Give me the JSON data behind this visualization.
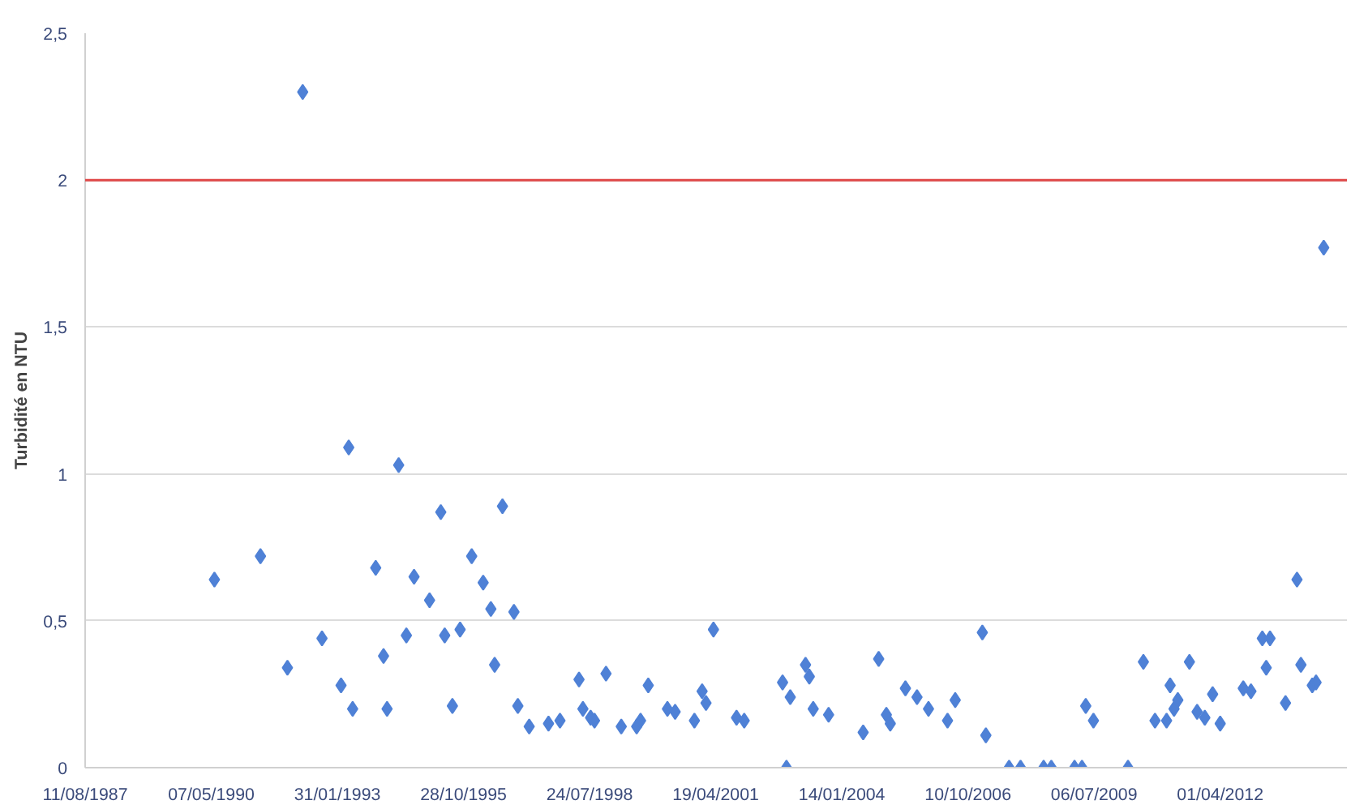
{
  "chart_data": {
    "type": "scatter",
    "ylabel": "Turbidité en NTU",
    "xlim": [
      "1987-08-11",
      "2015-01-01"
    ],
    "xticks": [
      {
        "value": "1987-08-11",
        "label": "11/08/1987"
      },
      {
        "value": "1990-05-07",
        "label": "07/05/1990"
      },
      {
        "value": "1993-01-31",
        "label": "31/01/1993"
      },
      {
        "value": "1995-10-28",
        "label": "28/10/1995"
      },
      {
        "value": "1998-07-24",
        "label": "24/07/1998"
      },
      {
        "value": "2001-04-19",
        "label": "19/04/2001"
      },
      {
        "value": "2004-01-14",
        "label": "14/01/2004"
      },
      {
        "value": "2006-10-10",
        "label": "10/10/2006"
      },
      {
        "value": "2009-07-06",
        "label": "06/07/2009"
      },
      {
        "value": "2012-04-01",
        "label": "01/04/2012"
      }
    ],
    "ylim": [
      0,
      2.5
    ],
    "yticks": [
      0,
      {
        "value": 0.5,
        "label": "0,5"
      },
      1,
      {
        "value": 1.5,
        "label": "1,5"
      },
      2,
      {
        "value": 2.5,
        "label": "2,5"
      }
    ],
    "grid": "y",
    "marker": "diamond",
    "ref_lines": [
      {
        "axis": "y",
        "value": 2,
        "color": "#e04848"
      }
    ],
    "series": [
      {
        "color": "#4f81d6",
        "x": [
          "1990-06",
          "1991-06",
          "1992-01",
          "1992-05",
          "1992-10",
          "1993-03",
          "1993-05",
          "1993-06",
          "1993-12",
          "1994-02",
          "1994-03",
          "1994-06",
          "1994-08",
          "1994-10",
          "1995-02",
          "1995-05",
          "1995-06",
          "1995-08",
          "1995-10",
          "1996-01",
          "1996-04",
          "1996-06",
          "1996-07",
          "1996-09",
          "1996-12",
          "1997-01",
          "1997-04",
          "1997-09",
          "1997-12",
          "1998-05",
          "1998-06",
          "1998-08",
          "1998-09",
          "1998-12",
          "1999-04",
          "1999-08",
          "1999-09",
          "1999-11",
          "2000-04",
          "2000-06",
          "2000-11",
          "2001-01",
          "2001-02",
          "2001-04",
          "2001-10",
          "2001-12",
          "2002-10",
          "2002-11",
          "2002-12",
          "2003-04",
          "2003-05",
          "2003-06",
          "2003-10",
          "2004-07",
          "2004-11",
          "2005-01",
          "2005-02",
          "2005-06",
          "2005-09",
          "2005-12",
          "2006-05",
          "2006-07",
          "2007-02",
          "2007-03",
          "2007-09",
          "2007-12",
          "2008-06",
          "2008-08",
          "2009-02",
          "2009-04",
          "2009-05",
          "2009-07",
          "2010-04",
          "2010-08",
          "2010-11",
          "2011-02",
          "2011-03",
          "2011-04",
          "2011-05",
          "2011-08",
          "2011-10",
          "2011-12",
          "2012-02",
          "2012-04",
          "2012-10",
          "2012-12",
          "2013-03",
          "2013-04",
          "2013-05",
          "2013-09",
          "2013-12",
          "2014-01",
          "2014-04",
          "2014-05",
          "2014-07"
        ],
        "values": [
          0.64,
          0.72,
          0.34,
          2.3,
          0.44,
          0.28,
          1.09,
          0.2,
          0.68,
          0.38,
          0.2,
          1.03,
          0.45,
          0.65,
          0.57,
          0.87,
          0.45,
          0.21,
          0.47,
          0.72,
          0.63,
          0.54,
          0.35,
          0.89,
          0.53,
          0.21,
          0.14,
          0.15,
          0.16,
          0.3,
          0.2,
          0.17,
          0.16,
          0.32,
          0.14,
          0.14,
          0.16,
          0.28,
          0.2,
          0.19,
          0.16,
          0.26,
          0.22,
          0.47,
          0.17,
          0.16,
          0.29,
          0.0,
          0.24,
          0.35,
          0.31,
          0.2,
          0.18,
          0.12,
          0.37,
          0.18,
          0.15,
          0.27,
          0.24,
          0.2,
          0.16,
          0.23,
          0.46,
          0.11,
          0.0,
          0.0,
          0.0,
          0.0,
          0.0,
          0.0,
          0.21,
          0.16,
          0.0,
          0.36,
          0.16,
          0.16,
          0.28,
          0.2,
          0.23,
          0.36,
          0.19,
          0.17,
          0.25,
          0.15,
          0.27,
          0.26,
          0.44,
          0.34,
          0.44,
          0.22,
          0.64,
          0.35,
          0.28,
          0.29,
          1.77
        ]
      }
    ]
  }
}
